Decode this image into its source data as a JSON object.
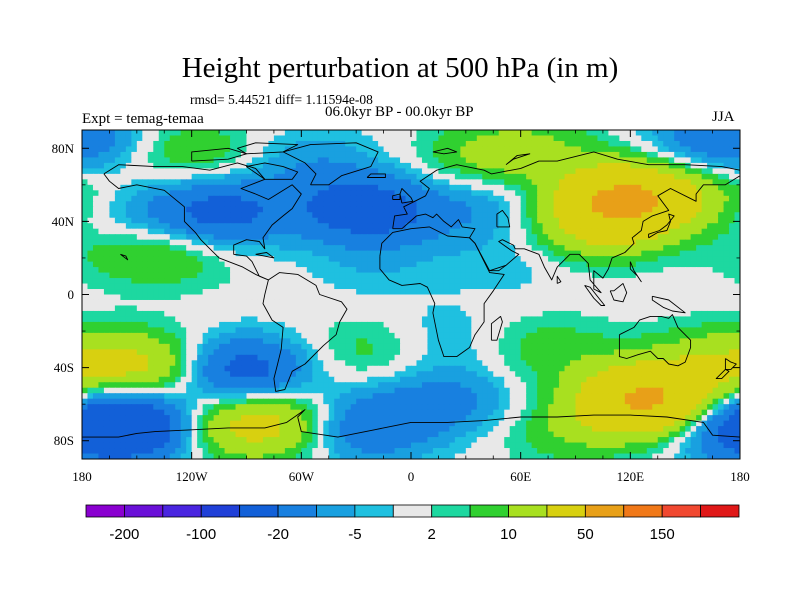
{
  "chart_data": {
    "type": "heatmap",
    "title": "Height perturbation at 500 hPa (in m)",
    "stats_text": "rmsd= 5.44521  diff= 1.11594e-08",
    "left_label": "Expt = temag-temaa",
    "center_label": "06.0kyr BP - 00.0kyr BP",
    "right_label": "JJA",
    "projection": "cylindrical equidistant, global",
    "x_range": [
      -180,
      180
    ],
    "y_range": [
      -90,
      90
    ],
    "x_ticks": [
      {
        "value": -180,
        "label": "180"
      },
      {
        "value": -120,
        "label": "120W"
      },
      {
        "value": -60,
        "label": "60W"
      },
      {
        "value": 0,
        "label": "0"
      },
      {
        "value": 60,
        "label": "60E"
      },
      {
        "value": 120,
        "label": "120E"
      },
      {
        "value": 180,
        "label": "180"
      }
    ],
    "y_ticks": [
      {
        "value": 80,
        "label": "80N"
      },
      {
        "value": 40,
        "label": "40N"
      },
      {
        "value": 0,
        "label": "0"
      },
      {
        "value": -40,
        "label": "40S"
      },
      {
        "value": -80,
        "label": "80S"
      }
    ],
    "contour_levels": [
      -200,
      -150,
      -100,
      -50,
      -20,
      -10,
      -5,
      -2,
      2,
      5,
      10,
      20,
      50,
      100,
      150,
      200
    ],
    "colorbar_labels": [
      {
        "level": -200,
        "label": "-200"
      },
      {
        "level": -100,
        "label": "-100"
      },
      {
        "level": -20,
        "label": "-20"
      },
      {
        "level": -5,
        "label": "-5"
      },
      {
        "level": 2,
        "label": "2"
      },
      {
        "level": 10,
        "label": "10"
      },
      {
        "level": 50,
        "label": "50"
      },
      {
        "level": 150,
        "label": "150"
      }
    ],
    "colorbar_colors": [
      "#8a00d0",
      "#6a10d8",
      "#4a25e0",
      "#2040d8",
      "#1260d8",
      "#1880e0",
      "#19a0e0",
      "#1fc0e0",
      "#e8e8e8",
      "#1dd8a0",
      "#30d030",
      "#a8e020",
      "#d8d010",
      "#e8a018",
      "#f07818",
      "#f04830",
      "#e01818"
    ],
    "anomaly_centers": [
      {
        "lon": -175,
        "lat": 85,
        "value": -8
      },
      {
        "lon": -120,
        "lat": 78,
        "value": 10
      },
      {
        "lon": -105,
        "lat": 45,
        "value": -25
      },
      {
        "lon": -160,
        "lat": 43,
        "value": -8
      },
      {
        "lon": -130,
        "lat": 22,
        "value": 8
      },
      {
        "lon": -158,
        "lat": 25,
        "value": 6
      },
      {
        "lon": -55,
        "lat": 72,
        "value": -8
      },
      {
        "lon": -28,
        "lat": 47,
        "value": -25
      },
      {
        "lon": -5,
        "lat": 42,
        "value": -6
      },
      {
        "lon": 40,
        "lat": 75,
        "value": 10
      },
      {
        "lon": 40,
        "lat": 48,
        "value": -8
      },
      {
        "lon": 118,
        "lat": 52,
        "value": 55
      },
      {
        "lon": 70,
        "lat": 80,
        "value": 8
      },
      {
        "lon": 100,
        "lat": 35,
        "value": 15
      },
      {
        "lon": 165,
        "lat": 85,
        "value": -12
      },
      {
        "lon": 170,
        "lat": 52,
        "value": 8
      },
      {
        "lon": -20,
        "lat": 15,
        "value": -4
      },
      {
        "lon": 55,
        "lat": 18,
        "value": -4
      },
      {
        "lon": -178,
        "lat": -38,
        "value": 10
      },
      {
        "lon": -140,
        "lat": -40,
        "value": 22
      },
      {
        "lon": -95,
        "lat": -42,
        "value": -30
      },
      {
        "lon": -150,
        "lat": -72,
        "value": -40
      },
      {
        "lon": -110,
        "lat": -72,
        "value": 15
      },
      {
        "lon": -75,
        "lat": -70,
        "value": 22
      },
      {
        "lon": -20,
        "lat": -30,
        "value": 8
      },
      {
        "lon": -25,
        "lat": -72,
        "value": -20
      },
      {
        "lon": 20,
        "lat": -58,
        "value": -12
      },
      {
        "lon": 15,
        "lat": -25,
        "value": -6
      },
      {
        "lon": 75,
        "lat": -30,
        "value": 8
      },
      {
        "lon": 130,
        "lat": -58,
        "value": 55
      },
      {
        "lon": 85,
        "lat": -75,
        "value": 8
      },
      {
        "lon": 175,
        "lat": -72,
        "value": -20
      },
      {
        "lon": 160,
        "lat": -35,
        "value": 8
      }
    ]
  }
}
